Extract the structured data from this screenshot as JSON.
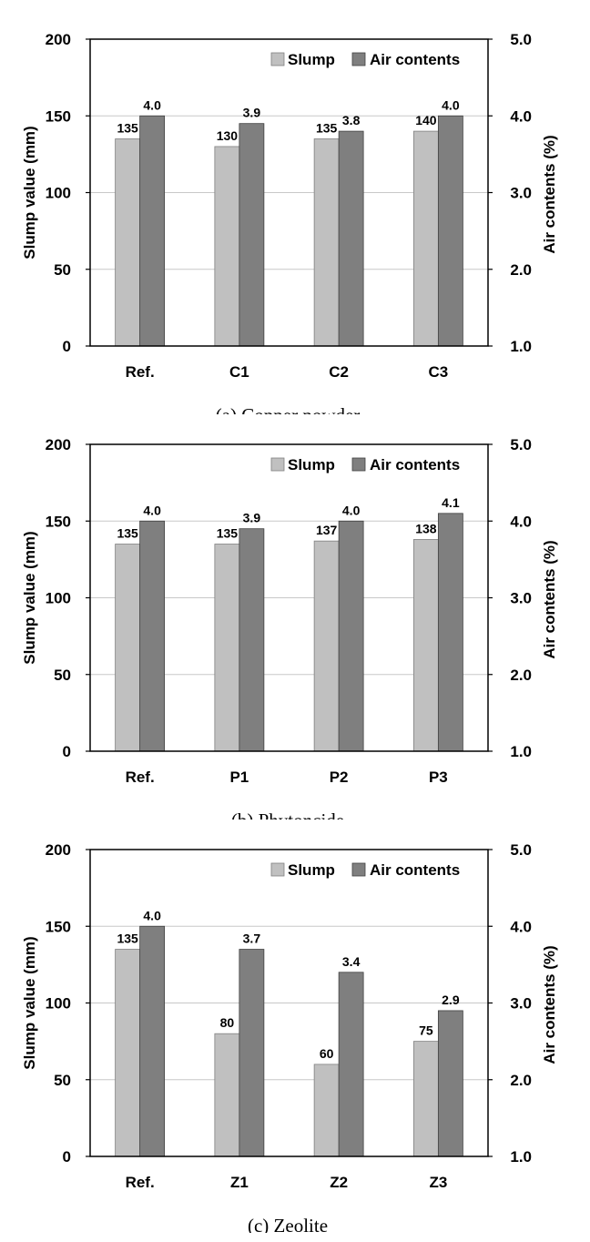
{
  "legend": {
    "slump": "Slump",
    "air": "Air contents"
  },
  "axes": {
    "left_label": "Slump value (mm)",
    "right_label": "Air contents (%)",
    "left_ticks": [
      "0",
      "50",
      "100",
      "150",
      "200"
    ],
    "right_ticks": [
      "1.0",
      "2.0",
      "3.0",
      "4.0",
      "5.0"
    ]
  },
  "colors": {
    "slump": "#c0c0c0",
    "air": "#7f7f7f",
    "grid": "#c8c8c8"
  },
  "chart_data": [
    {
      "type": "bar",
      "caption": "(a) Copper powder",
      "categories": [
        "Ref.",
        "C1",
        "C2",
        "C3"
      ],
      "left_ylim": [
        0,
        200
      ],
      "right_ylim": [
        1.0,
        5.0
      ],
      "grid": true,
      "legend_position": "top-right",
      "series": [
        {
          "name": "Slump",
          "axis": "left",
          "values": [
            135,
            130,
            135,
            140
          ],
          "labels": [
            "135",
            "130",
            "135",
            "140"
          ]
        },
        {
          "name": "Air contents",
          "axis": "right",
          "values": [
            4.0,
            3.9,
            3.8,
            4.0
          ],
          "labels": [
            "4.0",
            "3.9",
            "3.8",
            "4.0"
          ]
        }
      ]
    },
    {
      "type": "bar",
      "caption": "(b) Phytoncide",
      "categories": [
        "Ref.",
        "P1",
        "P2",
        "P3"
      ],
      "left_ylim": [
        0,
        200
      ],
      "right_ylim": [
        1.0,
        5.0
      ],
      "grid": true,
      "legend_position": "top-right",
      "series": [
        {
          "name": "Slump",
          "axis": "left",
          "values": [
            135,
            135,
            137,
            138
          ],
          "labels": [
            "135",
            "135",
            "137",
            "138"
          ]
        },
        {
          "name": "Air contents",
          "axis": "right",
          "values": [
            4.0,
            3.9,
            4.0,
            4.1
          ],
          "labels": [
            "4.0",
            "3.9",
            "4.0",
            "4.1"
          ]
        }
      ]
    },
    {
      "type": "bar",
      "caption": "(c) Zeolite",
      "categories": [
        "Ref.",
        "Z1",
        "Z2",
        "Z3"
      ],
      "left_ylim": [
        0,
        200
      ],
      "right_ylim": [
        1.0,
        5.0
      ],
      "grid": true,
      "legend_position": "top-right",
      "series": [
        {
          "name": "Slump",
          "axis": "left",
          "values": [
            135,
            80,
            60,
            75
          ],
          "labels": [
            "135",
            "80",
            "60",
            "75"
          ]
        },
        {
          "name": "Air contents",
          "axis": "right",
          "values": [
            4.0,
            3.7,
            3.4,
            2.9
          ],
          "labels": [
            "4.0",
            "3.7",
            "3.4",
            "2.9"
          ]
        }
      ]
    }
  ]
}
